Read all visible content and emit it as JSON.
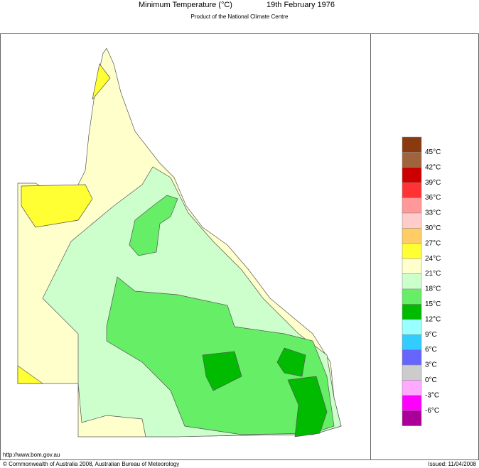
{
  "header": {
    "title": "Minimum Temperature (°C)",
    "date": "19th February 1976",
    "subtitle": "Product of the National Climate Centre"
  },
  "legend": [
    {
      "color": "#8b3a0f"
    },
    {
      "label": "45°C",
      "color": "#a0643c"
    },
    {
      "label": "42°C",
      "color": "#cc0000"
    },
    {
      "label": "39°C",
      "color": "#ff3333"
    },
    {
      "label": "36°C",
      "color": "#ff9999"
    },
    {
      "label": "33°C",
      "color": "#ffcccc"
    },
    {
      "label": "30°C",
      "color": "#ffcc66"
    },
    {
      "label": "27°C",
      "color": "#ffff33"
    },
    {
      "label": "24°C",
      "color": "#ffffcc"
    },
    {
      "label": "21°C",
      "color": "#ccffcc"
    },
    {
      "label": "18°C",
      "color": "#66ee66"
    },
    {
      "label": "15°C",
      "color": "#00bb00"
    },
    {
      "label": "12°C",
      "color": "#99ffff"
    },
    {
      "label": "9°C",
      "color": "#33ccff"
    },
    {
      "label": "6°C",
      "color": "#6666ff"
    },
    {
      "label": "3°C",
      "color": "#cccccc"
    },
    {
      "label": "0°C",
      "color": "#ffaaff"
    },
    {
      "label": "-3°C",
      "color": "#ff00ff"
    },
    {
      "label": "-6°C",
      "color": "#aa0099"
    }
  ],
  "footer": {
    "url": "http://www.bom.gov.au",
    "copyright": "© Commonwealth of Australia 2008, Australian Bureau of Meteorology",
    "issued": "Issued: 11/04/2008"
  }
}
